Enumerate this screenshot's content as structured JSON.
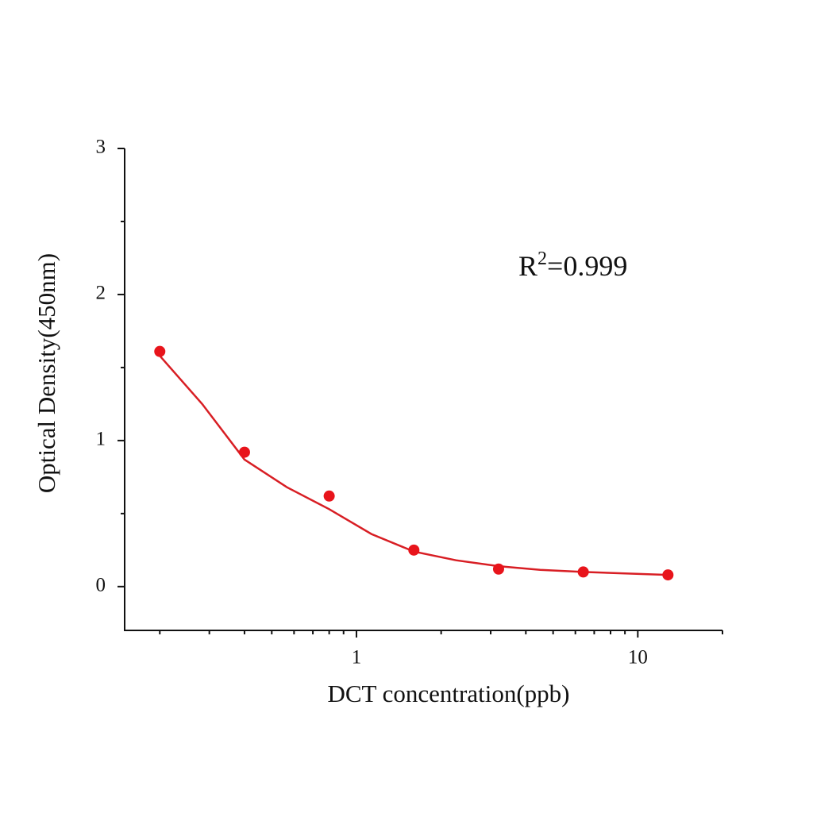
{
  "chart_data": {
    "type": "scatter",
    "x_label": "DCT  concentration(ppb)",
    "y_label": "Optical Density(450nm)",
    "annotation": {
      "base": "R",
      "sup": "2",
      "rest": "=0.999"
    },
    "xscale": "log",
    "xlim": [
      0.15,
      20
    ],
    "xticks": [
      1,
      10
    ],
    "xminorticks": [
      0.2,
      0.3,
      0.4,
      0.5,
      0.6,
      0.7,
      0.8,
      0.9,
      2,
      3,
      4,
      5,
      6,
      7,
      8,
      9,
      20
    ],
    "ylim": [
      -0.3,
      3
    ],
    "yticks": [
      0,
      1,
      2,
      3
    ],
    "yminorticks": [
      0.5,
      1.5,
      2.5
    ],
    "series": [
      {
        "type": "scatter",
        "color": "#e8141b",
        "x": [
          0.2,
          0.4,
          0.8,
          1.6,
          3.2,
          6.4,
          12.8
        ],
        "values": [
          1.61,
          0.92,
          0.62,
          0.25,
          0.12,
          0.1,
          0.08
        ]
      },
      {
        "type": "line",
        "color": "#d81e24",
        "x": [
          0.2,
          0.283,
          0.4,
          0.566,
          0.8,
          1.13,
          1.6,
          2.26,
          3.2,
          4.5,
          6.4,
          9,
          12.8
        ],
        "values": [
          1.58,
          1.25,
          0.87,
          0.68,
          0.53,
          0.36,
          0.24,
          0.18,
          0.14,
          0.115,
          0.1,
          0.09,
          0.08
        ]
      }
    ]
  }
}
